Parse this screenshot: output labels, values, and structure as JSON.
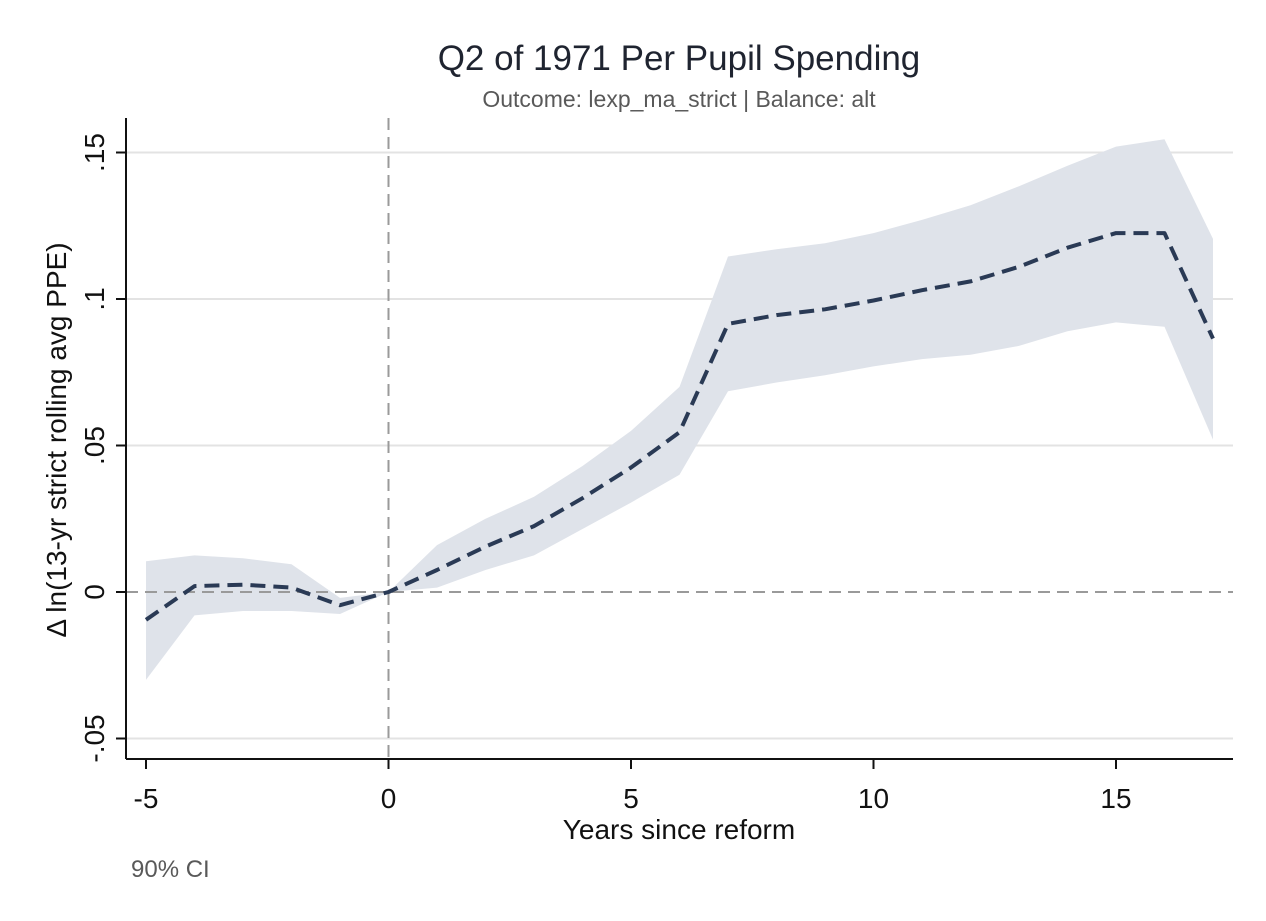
{
  "chart_data": {
    "type": "line",
    "title": "Q2 of 1971 Per Pupil Spending",
    "subtitle": "Outcome: lexp_ma_strict | Balance: alt",
    "xlabel": "Years since reform",
    "ylabel": "Δ ln(13-yr strict rolling avg PPE)",
    "note": "90% CI",
    "xlim": [
      -5,
      17
    ],
    "ylim": [
      -0.05,
      0.16
    ],
    "xticks": [
      -5,
      0,
      5,
      10,
      15
    ],
    "xtick_labels": [
      "-5",
      "0",
      "5",
      "10",
      "15"
    ],
    "yticks": [
      -0.05,
      0,
      0.05,
      0.1,
      0.15
    ],
    "ytick_labels": [
      "-.05",
      "0",
      ".05",
      ".1",
      ".15"
    ],
    "grid": true,
    "reference_lines": {
      "x": 0,
      "y": 0
    },
    "colors": {
      "line": "#2a3a55",
      "band": "#dfe3ea",
      "grid": "#e3e3e3",
      "refline": "#9a9a9a",
      "axis": "#111111"
    },
    "x": [
      -5,
      -4,
      -3,
      -2,
      -1,
      0,
      1,
      2,
      3,
      4,
      5,
      6,
      7,
      8,
      9,
      10,
      11,
      12,
      13,
      14,
      15,
      16,
      17
    ],
    "series": [
      {
        "values": [
          -0.0095,
          0.002,
          0.0025,
          0.0015,
          -0.0045,
          0.0,
          0.0075,
          0.0155,
          0.0225,
          0.032,
          0.0425,
          0.0545,
          0.0915,
          0.0945,
          0.0965,
          0.0995,
          0.103,
          0.106,
          0.111,
          0.1175,
          0.1225,
          0.1225,
          0.0865
        ],
        "ci_lower": [
          -0.03,
          -0.008,
          -0.0065,
          -0.0065,
          -0.0075,
          0.0,
          0.0015,
          0.0075,
          0.0125,
          0.0215,
          0.0305,
          0.04,
          0.0685,
          0.0715,
          0.074,
          0.077,
          0.0795,
          0.081,
          0.084,
          0.089,
          0.092,
          0.0905,
          0.052
        ],
        "ci_upper": [
          0.0105,
          0.0125,
          0.0115,
          0.0095,
          -0.002,
          0.0,
          0.016,
          0.025,
          0.0325,
          0.043,
          0.055,
          0.07,
          0.1145,
          0.117,
          0.119,
          0.1225,
          0.127,
          0.132,
          0.1385,
          0.1455,
          0.152,
          0.1545,
          0.1205
        ]
      }
    ]
  }
}
